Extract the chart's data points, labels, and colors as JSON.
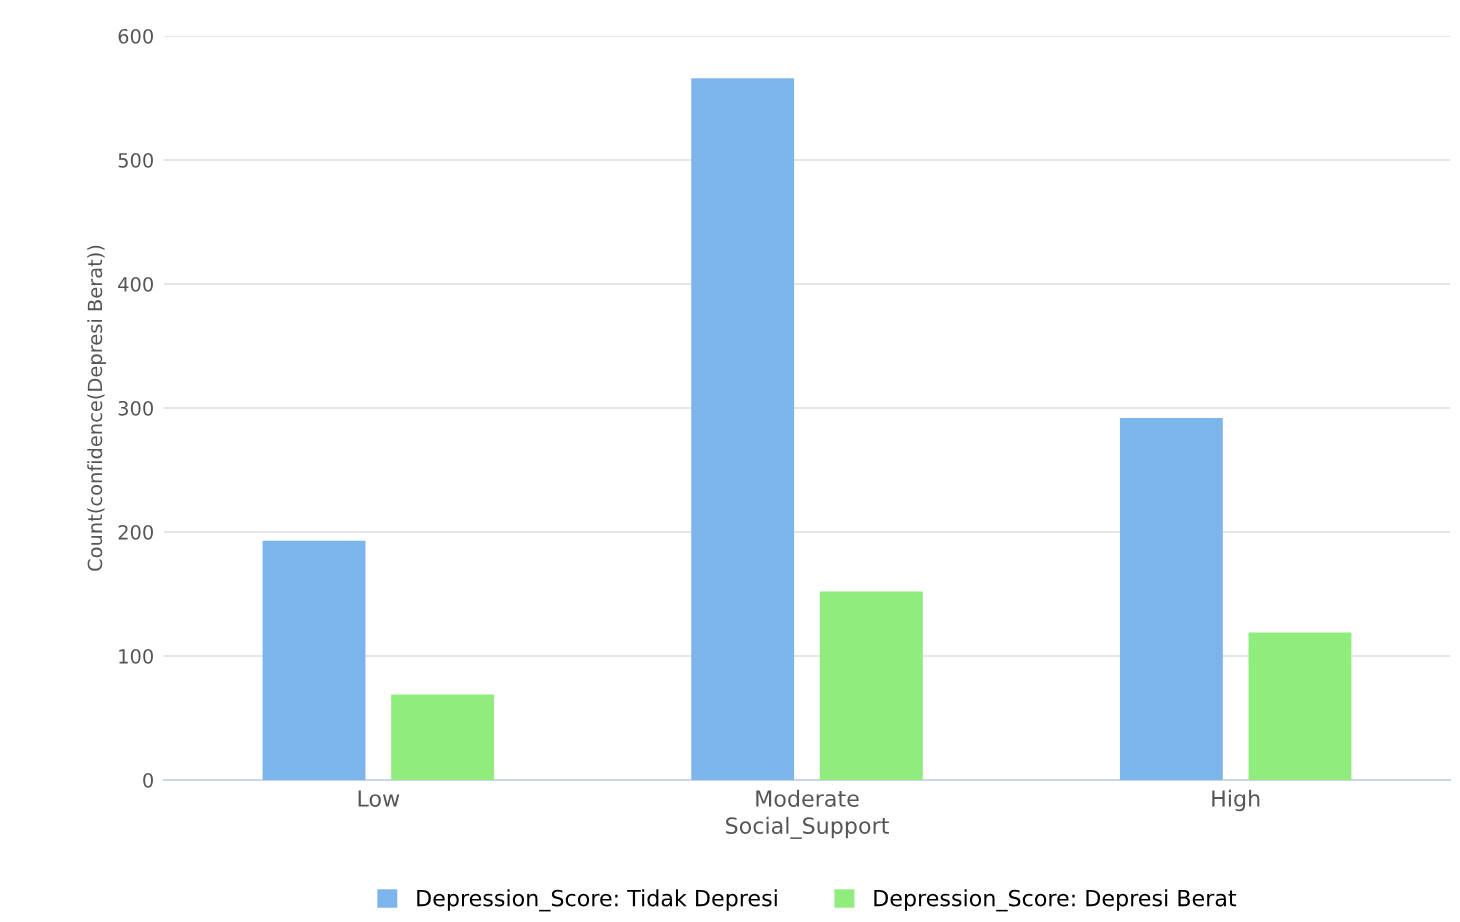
{
  "chart_data": {
    "type": "bar",
    "xlabel": "Social_Support",
    "ylabel": "Count(confidence(Depresi Berat))",
    "categories": [
      "Low",
      "Moderate",
      "High"
    ],
    "series": [
      {
        "name": "Depression_Score: Tidak Depresi",
        "color": "#7cb5ec",
        "values": [
          193,
          566,
          292
        ]
      },
      {
        "name": "Depression_Score: Depresi Berat",
        "color": "#90ed7d",
        "values": [
          69,
          152,
          119
        ]
      }
    ],
    "ylim": [
      0,
      600
    ],
    "yticks": [
      0,
      100,
      200,
      300,
      400,
      500,
      600
    ],
    "grid": "y",
    "legend": "bottom"
  }
}
